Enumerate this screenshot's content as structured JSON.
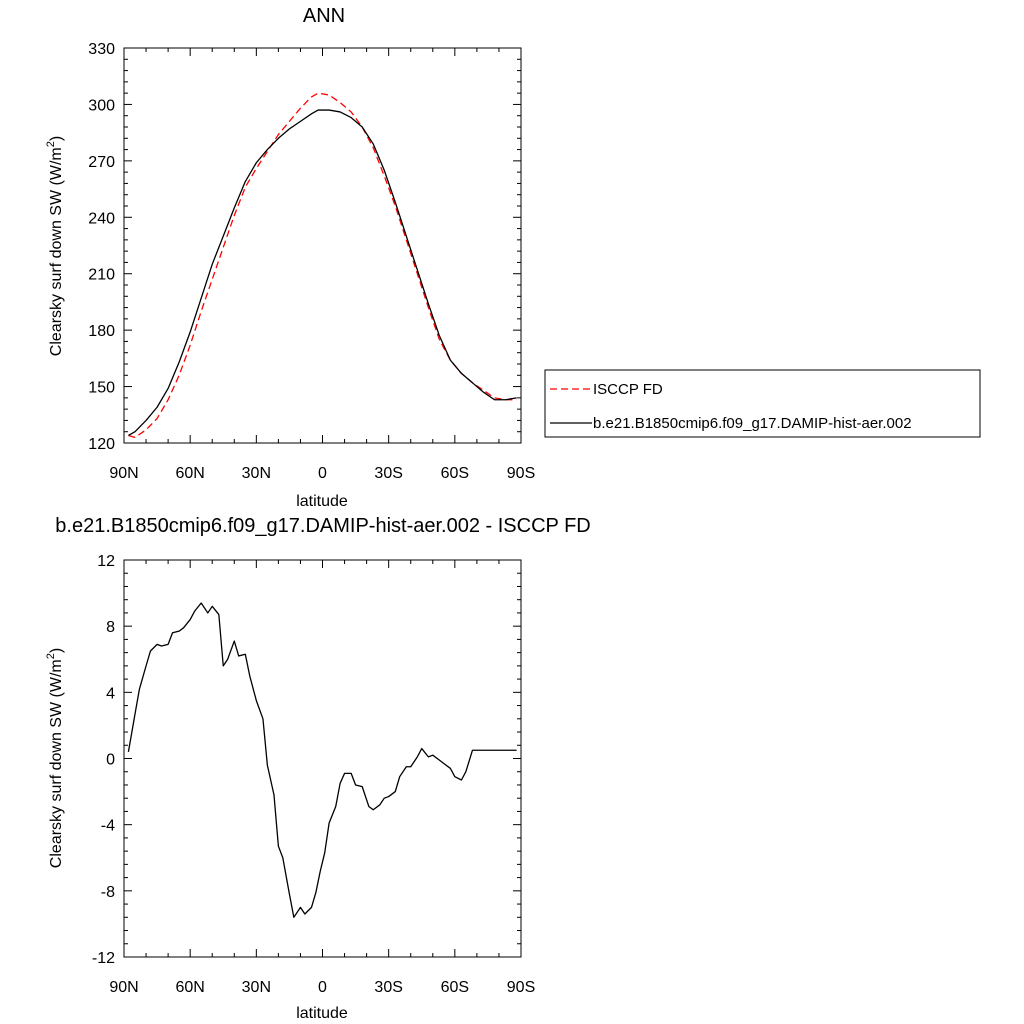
{
  "chart_data": [
    {
      "type": "line",
      "title": "ANN",
      "xlabel": "latitude",
      "ylabel": "Clearsky surf down SW (W/m",
      "ylabel_superscript": "2",
      "ylabel_suffix": ")",
      "xlim": [
        90,
        -90
      ],
      "ylim": [
        120,
        330
      ],
      "x_ticks": [
        90,
        60,
        30,
        0,
        -30,
        -60,
        -90
      ],
      "x_tick_labels": [
        "90N",
        "60N",
        "30N",
        "0",
        "30S",
        "60S",
        "90S"
      ],
      "y_ticks": [
        120,
        150,
        180,
        210,
        240,
        270,
        300,
        330
      ],
      "y_tick_labels": [
        "120",
        "150",
        "180",
        "210",
        "240",
        "270",
        "300",
        "330"
      ],
      "legend_placement": "right",
      "series": [
        {
          "name": "ISCCP FD",
          "color": "#ff0000",
          "dash": "dashed",
          "x": [
            88,
            85,
            80,
            75,
            70,
            65,
            60,
            55,
            50,
            45,
            40,
            35,
            30,
            25,
            20,
            15,
            10,
            5,
            2,
            -3,
            -8,
            -13,
            -18,
            -23,
            -28,
            -33,
            -38,
            -43,
            -48,
            -53,
            -58,
            -63,
            -68,
            -73,
            -78,
            -83,
            -88
          ],
          "y": [
            124,
            123,
            127,
            133,
            143,
            156,
            172,
            190,
            207,
            224,
            241,
            256,
            266,
            275,
            284,
            291,
            298,
            304,
            306,
            305,
            301,
            296,
            288,
            277,
            262,
            246,
            228,
            210,
            192,
            175,
            164,
            157,
            152,
            148,
            144,
            143,
            143
          ]
        },
        {
          "name": "b.e21.B1850cmip6.f09_g17.DAMIP-hist-aer.002",
          "color": "#000000",
          "dash": "solid",
          "x": [
            88,
            85,
            80,
            75,
            70,
            65,
            60,
            55,
            50,
            45,
            40,
            35,
            30,
            25,
            20,
            15,
            10,
            5,
            2,
            -3,
            -8,
            -13,
            -18,
            -23,
            -28,
            -33,
            -38,
            -43,
            -48,
            -53,
            -58,
            -63,
            -68,
            -73,
            -78,
            -83,
            -88
          ],
          "y": [
            124,
            126,
            132,
            139,
            149,
            163,
            179,
            197,
            215,
            230,
            245,
            259,
            269,
            276,
            282,
            287,
            291,
            295,
            297,
            297,
            296,
            293,
            288,
            279,
            265,
            248,
            230,
            212,
            194,
            177,
            164,
            157,
            152,
            147,
            143,
            143,
            144
          ]
        }
      ]
    },
    {
      "type": "line",
      "title": "b.e21.B1850cmip6.f09_g17.DAMIP-hist-aer.002 - ISCCP FD",
      "xlabel": "latitude",
      "ylabel": "Clearsky surf down SW (W/m",
      "ylabel_superscript": "2",
      "ylabel_suffix": ")",
      "xlim": [
        90,
        -90
      ],
      "ylim": [
        -12,
        12
      ],
      "x_ticks": [
        90,
        60,
        30,
        0,
        -30,
        -60,
        -90
      ],
      "x_tick_labels": [
        "90N",
        "60N",
        "30N",
        "0",
        "30S",
        "60S",
        "90S"
      ],
      "y_ticks": [
        -12,
        -8,
        -4,
        0,
        4,
        8,
        12
      ],
      "y_tick_labels": [
        "-12",
        "-8",
        "-4",
        "0",
        "4",
        "8",
        "12"
      ],
      "series": [
        {
          "color": "#000000",
          "dash": "solid",
          "x": [
            88,
            85,
            83,
            80,
            78,
            75,
            73,
            70,
            68,
            65,
            63,
            60,
            58,
            55,
            52,
            50,
            47,
            45,
            43,
            40,
            38,
            35,
            33,
            30,
            27,
            25,
            22,
            20,
            18,
            15,
            13,
            10,
            8,
            5,
            3,
            1,
            -1,
            -3,
            -6,
            -8,
            -10,
            -13,
            -15,
            -18,
            -21,
            -23,
            -26,
            -28,
            -30,
            -33,
            -35,
            -38,
            -40,
            -43,
            -45,
            -48,
            -50,
            -53,
            -55,
            -58,
            -60,
            -63,
            -65,
            -68,
            -70,
            -73,
            -75,
            -78,
            -81,
            -83,
            -85,
            -88
          ],
          "y": [
            0.4,
            2.7,
            4.2,
            5.6,
            6.5,
            6.9,
            6.8,
            6.9,
            7.6,
            7.7,
            7.9,
            8.4,
            8.9,
            9.4,
            8.8,
            9.2,
            8.7,
            5.6,
            6.0,
            7.1,
            6.2,
            6.3,
            5.0,
            3.5,
            2.4,
            -0.4,
            -2.2,
            -5.3,
            -6.0,
            -8.2,
            -9.6,
            -9.0,
            -9.4,
            -9.0,
            -8.1,
            -6.8,
            -5.7,
            -3.9,
            -2.9,
            -1.5,
            -0.9,
            -0.9,
            -1.6,
            -1.7,
            -2.9,
            -3.1,
            -2.8,
            -2.4,
            -2.3,
            -2.0,
            -1.1,
            -0.5,
            -0.5,
            0.1,
            0.6,
            0.1,
            0.2,
            -0.1,
            -0.3,
            -0.6,
            -1.1,
            -1.3,
            -0.8,
            0.5,
            0.5,
            0.5,
            0.5,
            0.5,
            0.5,
            0.5,
            0.5,
            0.5
          ]
        }
      ]
    }
  ]
}
